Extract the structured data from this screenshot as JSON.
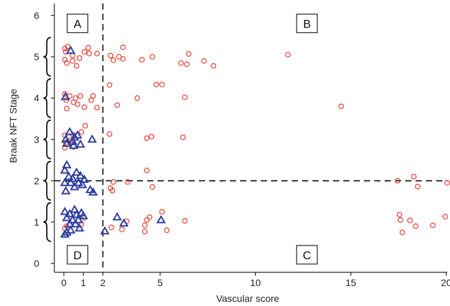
{
  "chart_data": {
    "type": "scatter",
    "title": "",
    "xlabel": "Vascular score",
    "ylabel": "Braak NFT Stage",
    "xlim": [
      -0.5,
      20.2
    ],
    "ylim": [
      -0.3,
      6.3
    ],
    "x_ticks": [
      0,
      1,
      2,
      5,
      10,
      15,
      20
    ],
    "x_tick_labels": [
      "0",
      "1",
      "2",
      "5",
      "10",
      "15",
      "20"
    ],
    "y_ticks": [
      0,
      1,
      2,
      3,
      4,
      5,
      6
    ],
    "y_tick_labels": [
      "0",
      "1",
      "2",
      "3",
      "4",
      "5",
      "6"
    ],
    "x_scale_note": "0-2 expanded; 2-20 linear",
    "reference_lines": {
      "vertical_x": 2,
      "horizontal_y": 2
    },
    "quadrant_labels": [
      {
        "text": "A",
        "x": 0.7,
        "y": 5.8
      },
      {
        "text": "B",
        "x": 12.7,
        "y": 5.8
      },
      {
        "text": "C",
        "x": 12.7,
        "y": 0.2
      },
      {
        "text": "D",
        "x": 0.7,
        "y": 0.2
      }
    ],
    "stage_braces": [
      1,
      2,
      3,
      4,
      5
    ],
    "colors": {
      "circle": "#e8392e",
      "triangle": "#2b3c9e",
      "reference_line": "#333333",
      "axis": "#222222"
    },
    "series": [
      {
        "marker": "circle",
        "points": [
          [
            0.05,
            5.2
          ],
          [
            0.1,
            5.12
          ],
          [
            0.2,
            5.25
          ],
          [
            0.05,
            4.93
          ],
          [
            0.15,
            4.85
          ],
          [
            0.45,
            4.9
          ],
          [
            0.65,
            4.78
          ],
          [
            0.8,
            4.97
          ],
          [
            0.45,
            5.03
          ],
          [
            1.05,
            5.12
          ],
          [
            1.25,
            5.22
          ],
          [
            1.3,
            5.08
          ],
          [
            1.7,
            5.08
          ],
          [
            2.4,
            5.03
          ],
          [
            2.55,
            4.92
          ],
          [
            2.85,
            5.0
          ],
          [
            3.05,
            4.95
          ],
          [
            3.05,
            5.23
          ],
          [
            4.05,
            4.93
          ],
          [
            4.6,
            5.0
          ],
          [
            6.1,
            4.85
          ],
          [
            6.4,
            4.82
          ],
          [
            6.5,
            5.07
          ],
          [
            7.3,
            4.9
          ],
          [
            7.8,
            4.78
          ],
          [
            11.7,
            5.05
          ],
          [
            0.05,
            4.1
          ],
          [
            0.12,
            3.95
          ],
          [
            0.3,
            4.05
          ],
          [
            0.5,
            3.9
          ],
          [
            0.6,
            4.0
          ],
          [
            0.7,
            3.85
          ],
          [
            0.85,
            4.05
          ],
          [
            1.05,
            3.78
          ],
          [
            1.4,
            3.95
          ],
          [
            1.5,
            4.05
          ],
          [
            1.7,
            3.77
          ],
          [
            2.35,
            4.32
          ],
          [
            2.75,
            3.83
          ],
          [
            3.8,
            4.0
          ],
          [
            4.8,
            4.33
          ],
          [
            5.1,
            4.33
          ],
          [
            6.3,
            4.02
          ],
          [
            14.5,
            3.8
          ],
          [
            0.15,
            3.75
          ],
          [
            0.05,
            3.1
          ],
          [
            0.1,
            2.92
          ],
          [
            0.35,
            2.98
          ],
          [
            0.5,
            2.82
          ],
          [
            0.45,
            3.12
          ],
          [
            0.9,
            3.18
          ],
          [
            1.1,
            3.33
          ],
          [
            2.35,
            3.13
          ],
          [
            4.3,
            3.03
          ],
          [
            4.55,
            3.07
          ],
          [
            6.2,
            3.05
          ],
          [
            0.05,
            2.8
          ],
          [
            2.4,
            1.82
          ],
          [
            2.55,
            1.97
          ],
          [
            3.3,
            1.97
          ],
          [
            4.3,
            2.25
          ],
          [
            4.6,
            1.85
          ],
          [
            17.45,
            2.0
          ],
          [
            18.3,
            2.1
          ],
          [
            18.5,
            1.86
          ],
          [
            20.05,
            1.95
          ],
          [
            2.5,
            1.76
          ],
          [
            0.05,
            0.85
          ],
          [
            0.15,
            0.9
          ],
          [
            0.9,
            0.95
          ],
          [
            1.05,
            1.1
          ],
          [
            2.45,
            0.87
          ],
          [
            3.0,
            0.82
          ],
          [
            3.25,
            1.02
          ],
          [
            4.2,
            0.77
          ],
          [
            4.2,
            0.92
          ],
          [
            4.3,
            1.05
          ],
          [
            4.45,
            1.12
          ],
          [
            5.1,
            1.25
          ],
          [
            5.35,
            0.8
          ],
          [
            6.3,
            1.03
          ],
          [
            17.55,
            1.18
          ],
          [
            17.6,
            1.05
          ],
          [
            17.7,
            0.75
          ],
          [
            18.1,
            1.04
          ],
          [
            18.4,
            0.9
          ],
          [
            19.3,
            0.92
          ],
          [
            19.95,
            1.13
          ]
        ]
      },
      {
        "marker": "triangle",
        "points": [
          [
            0.35,
            5.15
          ],
          [
            0.08,
            4.03
          ],
          [
            0.1,
            3.0
          ],
          [
            0.15,
            2.9
          ],
          [
            0.3,
            3.18
          ],
          [
            0.45,
            2.95
          ],
          [
            0.55,
            3.05
          ],
          [
            0.7,
            3.1
          ],
          [
            0.85,
            2.88
          ],
          [
            0.5,
            2.85
          ],
          [
            1.45,
            3.0
          ],
          [
            0.05,
            2.25
          ],
          [
            0.15,
            2.38
          ],
          [
            0.25,
            2.1
          ],
          [
            0.35,
            1.95
          ],
          [
            0.45,
            2.05
          ],
          [
            0.55,
            1.85
          ],
          [
            0.65,
            2.2
          ],
          [
            0.75,
            1.95
          ],
          [
            0.85,
            2.12
          ],
          [
            0.95,
            1.9
          ],
          [
            1.05,
            2.03
          ],
          [
            1.35,
            1.78
          ],
          [
            1.5,
            1.72
          ],
          [
            0.1,
            1.75
          ],
          [
            0.05,
            1.95
          ],
          [
            0.05,
            1.25
          ],
          [
            0.15,
            1.1
          ],
          [
            0.3,
            1.2
          ],
          [
            0.35,
            0.8
          ],
          [
            0.45,
            1.05
          ],
          [
            0.55,
            1.3
          ],
          [
            0.65,
            1.18
          ],
          [
            0.75,
            1.05
          ],
          [
            0.8,
            0.85
          ],
          [
            0.9,
            1.22
          ],
          [
            1.0,
            1.15
          ],
          [
            0.15,
            0.75
          ],
          [
            0.05,
            0.7
          ],
          [
            0.6,
            0.95
          ],
          [
            2.1,
            0.78
          ],
          [
            2.75,
            1.12
          ],
          [
            3.1,
            0.97
          ],
          [
            5.05,
            1.05
          ],
          [
            0.3,
            0.95
          ]
        ]
      }
    ]
  }
}
